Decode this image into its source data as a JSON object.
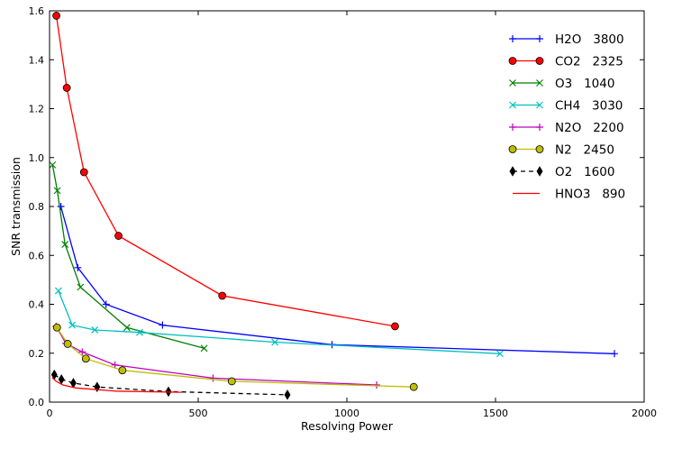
{
  "chart_data": {
    "type": "line",
    "title": "",
    "xlabel": "Resolving Power",
    "ylabel": "SNR transmission",
    "xlim": [
      0,
      2000
    ],
    "ylim": [
      0.0,
      1.6
    ],
    "xticks": [
      0,
      500,
      1000,
      1500,
      2000
    ],
    "yticks": [
      0.0,
      0.2,
      0.4,
      0.6,
      0.8,
      1.0,
      1.2,
      1.4,
      1.6
    ],
    "xtick_labels": [
      "0",
      "500",
      "1000",
      "1500",
      "2000"
    ],
    "ytick_labels": [
      "0.0",
      "0.2",
      "0.4",
      "0.6",
      "0.8",
      "1.0",
      "1.2",
      "1.4",
      "1.6"
    ],
    "grid": false,
    "legend_position": "top-right",
    "series": [
      {
        "name": "H2O   3800",
        "color": "#0000ff",
        "marker": "plus",
        "dashed": false,
        "x": [
          38,
          95,
          190,
          380,
          950,
          1900
        ],
        "y": [
          0.8,
          0.55,
          0.4,
          0.315,
          0.235,
          0.198
        ]
      },
      {
        "name": "CO2   2325",
        "color": "#ff0000",
        "marker": "circle",
        "dashed": false,
        "x": [
          23,
          58,
          116,
          232,
          581,
          1162
        ],
        "y": [
          1.58,
          1.285,
          0.94,
          0.68,
          0.435,
          0.31
        ]
      },
      {
        "name": "O3   1040",
        "color": "#008000",
        "marker": "x",
        "dashed": false,
        "x": [
          10,
          26,
          52,
          104,
          260,
          520
        ],
        "y": [
          0.97,
          0.865,
          0.645,
          0.47,
          0.305,
          0.22
        ]
      },
      {
        "name": "CH4   3030",
        "color": "#00bfbf",
        "marker": "x",
        "dashed": false,
        "x": [
          30,
          76,
          152,
          303,
          758,
          1515
        ],
        "y": [
          0.455,
          0.315,
          0.295,
          0.285,
          0.245,
          0.198
        ]
      },
      {
        "name": "N2O   2200",
        "color": "#bf00bf",
        "marker": "plus",
        "dashed": false,
        "x": [
          22,
          55,
          110,
          220,
          550,
          1100
        ],
        "y": [
          0.31,
          0.24,
          0.205,
          0.152,
          0.098,
          0.07
        ]
      },
      {
        "name": "N2   2450",
        "color": "#bfbf00",
        "marker": "circle",
        "dashed": false,
        "x": [
          25,
          61,
          122,
          245,
          613,
          1225
        ],
        "y": [
          0.305,
          0.238,
          0.178,
          0.13,
          0.085,
          0.062
        ]
      },
      {
        "name": "O2   1600",
        "color": "#000000",
        "marker": "diamond",
        "dashed": true,
        "x": [
          16,
          40,
          80,
          160,
          400,
          800
        ],
        "y": [
          0.112,
          0.093,
          0.078,
          0.062,
          0.043,
          0.03
        ]
      },
      {
        "name": "HNO3   890",
        "color": "#ff0000",
        "marker": "none",
        "dashed": false,
        "x": [
          9,
          22,
          45,
          89,
          223,
          445
        ],
        "y": [
          0.1,
          0.085,
          0.07,
          0.058,
          0.045,
          0.04
        ]
      }
    ]
  }
}
